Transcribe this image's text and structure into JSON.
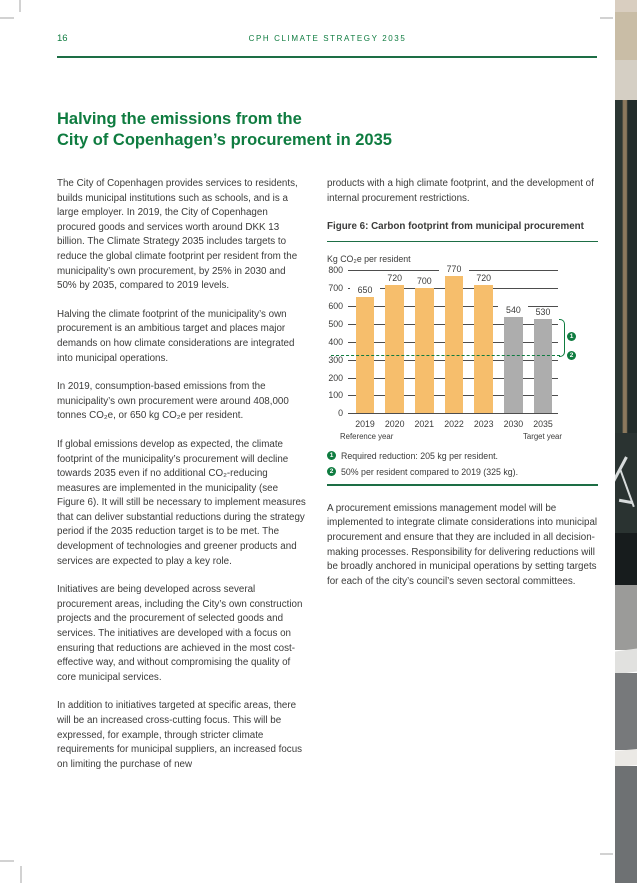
{
  "page": {
    "number": "16",
    "header": "CPH CLIMATE STRATEGY 2035"
  },
  "title": "Halving the emissions from the\nCity of Copenhagen’s procurement in 2035",
  "columns": {
    "left": {
      "paragraphs": [
        "The City of Copenhagen provides services to residents, builds municipal institutions such as schools, and is a large employer. In 2019, the City of Copenhagen procured goods and services worth around DKK 13 billion. The Climate Strategy 2035 includes targets to reduce the global climate footprint per resident from the municipality’s own procurement, by 25% in 2030 and 50% by 2035, compared to 2019 levels.",
        "Halving the climate footprint of the municipality’s own procurement is an ambitious target and places major demands on how climate considerations are integrated into municipal operations.",
        "In 2019, consumption-based emissions from the municipality’s own procurement were around 408,000 tonnes CO₂e, or 650 kg CO₂e per resident.",
        "If global emissions develop as expected, the climate footprint of the municipality’s procurement will decline towards 2035 even if no additional CO₂-reducing measures are implemented in the municipality (see Figure 6). It will still be necessary to implement measures that can deliver substantial reductions during the strategy period if the 2035 reduction target is to be met. The development of technologies and greener products and services are expected to play a key role.",
        "Initiatives are being developed across several procurement areas, including the City’s own construction projects and the procurement of selected goods and services. The initiatives are developed with a focus on ensuring that reductions are achieved in the most cost-effective way, and without compromising the quality of core municipal services.",
        "In addition to initiatives targeted at specific areas, there will be an increased cross-cutting focus. This will be expressed, for example, through stricter climate requirements for municipal suppliers, an increased focus on limiting the purchase of new"
      ]
    },
    "right": {
      "intro_paragraph": "products with a high climate footprint, and the development of internal procurement restrictions.",
      "figure_title": "Figure 6: Carbon footprint from municipal procurement",
      "closing_paragraph": "A procurement emissions management model will be implemented to integrate climate considerations into municipal procurement and ensure that they are included in all decision-making processes. Responsibility for delivering reductions will be broadly anchored in municipal operations by setting targets for each of the city’s council’s seven sectoral committees."
    }
  },
  "chart_data": {
    "type": "bar",
    "title": "Figure 6: Carbon footprint from municipal procurement",
    "ylabel": "Kg CO₂e per resident",
    "categories": [
      "2019",
      "2020",
      "2021",
      "2022",
      "2023",
      "2030",
      "2035"
    ],
    "values": [
      650,
      720,
      700,
      770,
      720,
      540,
      530
    ],
    "bar_colors": [
      "#F6BE6C",
      "#F6BE6C",
      "#F6BE6C",
      "#F6BE6C",
      "#F6BE6C",
      "#ADADAD",
      "#ADADAD"
    ],
    "ylim": [
      0,
      800
    ],
    "ytick_step": 100,
    "grid": true,
    "legend_position": "none",
    "reference_line": {
      "value": 325,
      "color": "#0F7C40",
      "style": "dashed"
    },
    "category_sublabels": [
      {
        "category": "2019",
        "label": "Reference year"
      },
      {
        "category": "2035",
        "label": "Target year"
      }
    ],
    "bracket": {
      "from_value": 530,
      "to_value": 325
    },
    "footnotes": [
      {
        "marker": "1",
        "text": "Required reduction: 205 kg per resident."
      },
      {
        "marker": "2",
        "text": "50% per resident compared to 2019 (325 kg)."
      }
    ]
  },
  "colors": {
    "accent_green": "#0F7C40",
    "bar_orange": "#F6BE6C",
    "bar_gray": "#ADADAD",
    "body_text": "#3B3B3A"
  }
}
